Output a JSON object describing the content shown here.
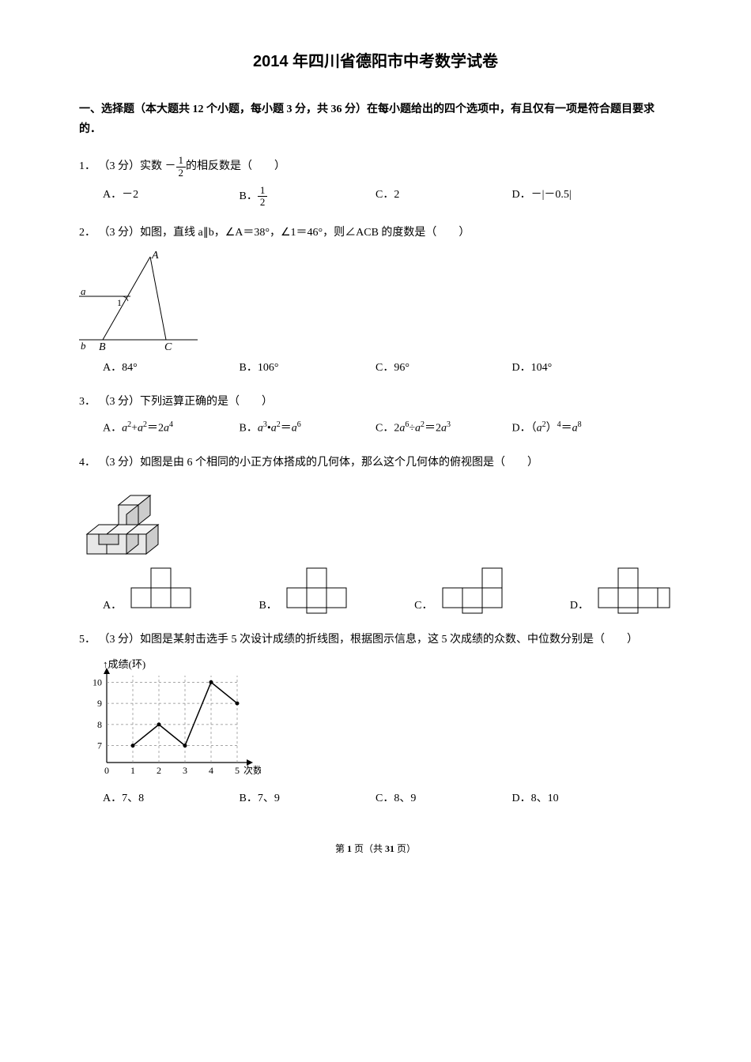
{
  "title": "2014 年四川省德阳市中考数学试卷",
  "section_header": "一、选择题（本大题共 12 个小题，每小题 3 分，共 36 分）在每小题给出的四个选项中，有且仅有一项是符合题目要求的．",
  "questions": [
    {
      "num": "1",
      "text_prefix": "（3 分）实数 －",
      "text_suffix": "的相反数是（　　）",
      "fraction": {
        "num": "1",
        "den": "2"
      },
      "opts": [
        {
          "label": "A．",
          "text": "－2"
        },
        {
          "label": "B．",
          "fraction": {
            "num": "1",
            "den": "2"
          }
        },
        {
          "label": "C．",
          "text": "2"
        },
        {
          "label": "D．",
          "text": "－|－0.5|"
        }
      ]
    },
    {
      "num": "2",
      "text": "（3 分）如图，直线 a∥b，∠A＝38°，∠1＝46°，则∠ACB 的度数是（　　）",
      "figure": "triangle",
      "opts": [
        {
          "label": "A．",
          "text": "84°"
        },
        {
          "label": "B．",
          "text": "106°"
        },
        {
          "label": "C．",
          "text": "96°"
        },
        {
          "label": "D．",
          "text": "104°"
        }
      ]
    },
    {
      "num": "3",
      "text": "（3 分）下列运算正确的是（　　）",
      "opts_html": [
        {
          "label": "A．",
          "html": "a2_plus"
        },
        {
          "label": "B．",
          "html": "a3_dot"
        },
        {
          "label": "C．",
          "html": "a6_div"
        },
        {
          "label": "D．",
          "html": "a2_pow4"
        }
      ]
    },
    {
      "num": "4",
      "text": "（3 分）如图是由 6 个相同的小正方体搭成的几何体，那么这个几何体的俯视图是（　　）",
      "figure": "cubes",
      "img_opts": [
        "A．",
        "B．",
        "C．",
        "D．"
      ]
    },
    {
      "num": "5",
      "text": "（3 分）如图是某射击选手 5 次设计成绩的折线图，根据图示信息，这 5 次成绩的众数、中位数分别是（　　）",
      "figure": "linechart",
      "opts": [
        {
          "label": "A．",
          "text": "7、8"
        },
        {
          "label": "B．",
          "text": "7、9"
        },
        {
          "label": "C．",
          "text": "8、9"
        },
        {
          "label": "D．",
          "text": "8、10"
        }
      ]
    }
  ],
  "linechart": {
    "y_label": "成绩(环)",
    "x_label": "次数",
    "y_ticks": [
      7,
      8,
      9,
      10
    ],
    "x_ticks": [
      0,
      1,
      2,
      3,
      4,
      5
    ],
    "points": [
      {
        "x": 1,
        "y": 7
      },
      {
        "x": 2,
        "y": 8
      },
      {
        "x": 3,
        "y": 7
      },
      {
        "x": 4,
        "y": 10
      },
      {
        "x": 5,
        "y": 9
      }
    ],
    "axis_color": "#000000",
    "line_color": "#000000",
    "grid_color": "#888888"
  },
  "footer": {
    "prefix": "第 ",
    "page": "1",
    "mid": " 页（共 ",
    "total": "31",
    "suffix": " 页）"
  }
}
